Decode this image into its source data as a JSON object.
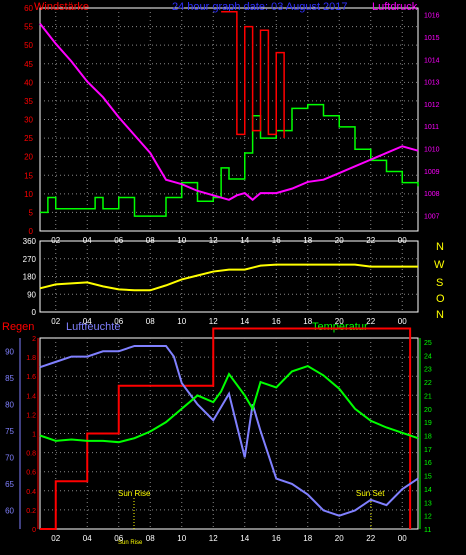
{
  "header": {
    "title": "24 hour graph date: 03 August 2017",
    "left_label": "Windstärke",
    "right_label": "Luftdruck"
  },
  "middle_panel": {
    "compass_labels": [
      "N",
      "W",
      "S",
      "O",
      "N"
    ]
  },
  "bottom_panel": {
    "rain_label": "Regen",
    "humidity_label": "Luftfeuchte",
    "temperature_label": "Temperatur",
    "sunrise_label": "Sun Rise",
    "sunset_label": "Sun Set"
  },
  "colors": {
    "wind": "#00ff00",
    "gust": "#ff0000",
    "pressure": "#ff00ff",
    "direction": "#ffff00",
    "rain": "#ff0000",
    "humidity": "#8080ff",
    "temperature": "#00ff00",
    "grid": "#888888",
    "frame": "#ffffff"
  },
  "chart_data": [
    {
      "type": "line",
      "name": "wind-pressure",
      "x_ticks": [
        "02",
        "04",
        "06",
        "08",
        "10",
        "12",
        "14",
        "16",
        "18",
        "20",
        "22",
        "00"
      ],
      "xlim": [
        1,
        25
      ],
      "y_left_ticks": [
        0,
        5,
        10,
        15,
        20,
        25,
        30,
        35,
        40,
        45,
        50,
        55,
        60
      ],
      "ylim_left": [
        0,
        60
      ],
      "y_right_ticks": [
        1007,
        1008,
        1009,
        1010,
        1011,
        1012,
        1013,
        1014,
        1015,
        1016
      ],
      "ylim_right": [
        1006.3,
        1016.3
      ],
      "series": [
        {
          "key": "wind",
          "axis": "left",
          "step": true,
          "x": [
            1,
            1.5,
            2,
            3,
            4,
            4.5,
            5,
            6,
            7,
            8,
            9,
            10,
            11,
            12,
            12.5,
            13,
            14,
            14.5,
            15,
            16,
            17,
            18,
            19,
            20,
            21,
            22,
            23,
            24,
            25
          ],
          "y": [
            5,
            9,
            6,
            6,
            6,
            9,
            6,
            9,
            4,
            4,
            9,
            13,
            8,
            9,
            17,
            14,
            21,
            31,
            25,
            27,
            33,
            34,
            31,
            28,
            22,
            19,
            16,
            13,
            12
          ]
        },
        {
          "key": "gust",
          "axis": "left",
          "step": true,
          "x": [
            12.5,
            13,
            13.5,
            14,
            14.5,
            15,
            15.5,
            16,
            16.5
          ],
          "y": [
            59,
            59,
            26,
            55,
            27,
            54,
            26,
            48,
            25
          ]
        },
        {
          "key": "pressure",
          "axis": "right",
          "x": [
            1,
            2,
            3,
            4,
            5,
            6,
            7,
            8,
            9,
            9.5,
            10,
            11,
            12,
            13,
            13.5,
            14,
            14.5,
            15,
            16,
            17,
            18,
            19,
            20,
            21,
            22,
            23,
            24,
            25
          ],
          "y": [
            1015.6,
            1014.7,
            1013.9,
            1013.0,
            1012.3,
            1011.4,
            1010.6,
            1009.8,
            1008.6,
            1008.5,
            1008.4,
            1008.1,
            1007.9,
            1007.7,
            1007.9,
            1008.0,
            1007.7,
            1008.0,
            1008.0,
            1008.2,
            1008.5,
            1008.6,
            1008.9,
            1009.2,
            1009.5,
            1009.8,
            1010.1,
            1009.9
          ]
        }
      ]
    },
    {
      "type": "line",
      "name": "wind-direction",
      "x_ticks": [
        "02",
        "04",
        "06",
        "08",
        "10",
        "12",
        "14",
        "16",
        "18",
        "20",
        "22",
        "00"
      ],
      "xlim": [
        1,
        25
      ],
      "y_left_ticks": [
        0,
        90,
        180,
        270,
        360
      ],
      "ylim": [
        0,
        360
      ],
      "series": [
        {
          "key": "direction",
          "x": [
            1,
            2,
            3,
            4,
            5,
            6,
            7,
            8,
            9,
            10,
            11,
            12,
            13,
            14,
            15,
            16,
            17,
            18,
            19,
            20,
            21,
            22,
            23,
            24,
            25
          ],
          "y": [
            120,
            140,
            145,
            150,
            130,
            115,
            110,
            110,
            135,
            165,
            185,
            205,
            215,
            215,
            235,
            240,
            240,
            240,
            240,
            240,
            240,
            230,
            230,
            230,
            230
          ]
        }
      ]
    },
    {
      "type": "line",
      "name": "rain-humidity-temperature",
      "x_ticks": [
        "02",
        "04",
        "06",
        "08",
        "10",
        "12",
        "14",
        "16",
        "18",
        "20",
        "22",
        "00"
      ],
      "xlim": [
        1,
        25
      ],
      "y_left_ticks": [
        0,
        0.2,
        0.4,
        0.6,
        0.8,
        1,
        1.2,
        1.4,
        1.6,
        1.8,
        2
      ],
      "ylim_rain": [
        0,
        2
      ],
      "y_humidity_ticks": [
        60,
        65,
        70,
        75,
        80,
        85,
        90
      ],
      "ylim_humidity": [
        56.5,
        92.5
      ],
      "y_right_ticks": [
        11,
        12,
        13,
        14,
        15,
        16,
        17,
        18,
        19,
        20,
        21,
        22,
        23,
        24,
        25
      ],
      "ylim_temperature": [
        11,
        25.3
      ],
      "series": [
        {
          "key": "rain",
          "axis": "rain",
          "step": true,
          "x": [
            1,
            2,
            3,
            4,
            5,
            6,
            7,
            8,
            9,
            10,
            11,
            12,
            13,
            24.5,
            24.5
          ],
          "y": [
            0,
            0.5,
            0.5,
            1.0,
            1.0,
            1.5,
            1.5,
            1.5,
            1.5,
            1.5,
            1.5,
            2.1,
            2.1,
            2.1,
            0
          ]
        },
        {
          "key": "humidity",
          "axis": "humidity",
          "x": [
            1,
            2,
            3,
            4,
            5,
            6,
            7,
            8,
            9,
            9.5,
            10,
            11,
            12,
            13,
            14,
            14.5,
            15,
            16,
            17,
            18,
            19,
            20,
            21,
            22,
            23,
            24,
            25
          ],
          "y": [
            87,
            88,
            89,
            89,
            90,
            90,
            91,
            91,
            91,
            89,
            84,
            80,
            77,
            82,
            70,
            80,
            75,
            66,
            65,
            63,
            60,
            59,
            60,
            62,
            61,
            64,
            66
          ]
        },
        {
          "key": "temperature",
          "axis": "temperature",
          "x": [
            1,
            2,
            3,
            4,
            5,
            6,
            7,
            8,
            9,
            10,
            11,
            12,
            12.5,
            13,
            14,
            14.5,
            15,
            16,
            17,
            18,
            19,
            20,
            21,
            22,
            23,
            24,
            25
          ],
          "y": [
            18.0,
            17.6,
            17.7,
            17.6,
            17.6,
            17.5,
            17.8,
            18.3,
            19.0,
            20.0,
            21.0,
            20.5,
            21.3,
            22.6,
            21.0,
            20.0,
            22.0,
            21.6,
            22.8,
            23.2,
            22.5,
            21.5,
            20.0,
            19.1,
            18.6,
            18.2,
            17.8
          ]
        }
      ]
    }
  ]
}
